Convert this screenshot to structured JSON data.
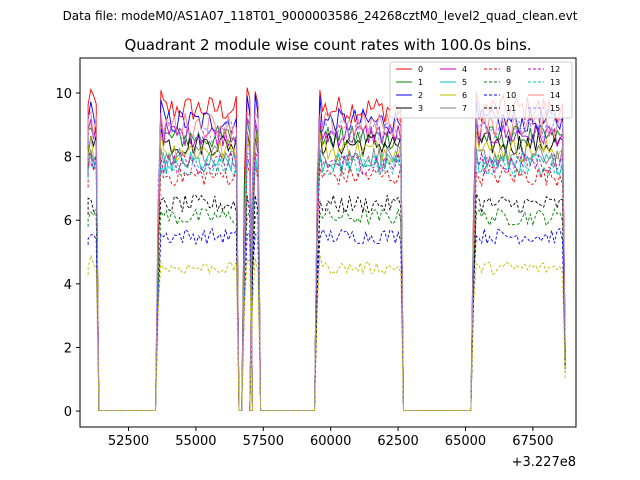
{
  "chart_data": {
    "type": "line",
    "suptitle": "Data file: modeM0/AS1A07_118T01_9000003586_24268cztM0_level2_quad_clean.evt",
    "title": "Quadrant 2 module wise count rates with 100.0s bins.",
    "xlabel": "",
    "ylabel": "",
    "x_offset_label": "+3.227e8",
    "xlim": [
      50700,
      69100
    ],
    "ylim": [
      -0.5,
      11.1
    ],
    "x_ticks": [
      52500,
      55000,
      57500,
      60000,
      62500,
      65000,
      67500
    ],
    "x_tick_labels": [
      "52500",
      "55000",
      "57500",
      "60000",
      "62500",
      "65000",
      "67500"
    ],
    "y_ticks": [
      0,
      2,
      4,
      6,
      8,
      10
    ],
    "y_tick_labels": [
      "0",
      "2",
      "4",
      "6",
      "8",
      "10"
    ],
    "bin_seconds": 100,
    "segments": [
      {
        "start": 51000,
        "end": 51300
      },
      {
        "start": 53600,
        "end": 56500
      },
      {
        "start": 56800,
        "end": 57000
      },
      {
        "start": 57100,
        "end": 57300
      },
      {
        "start": 59500,
        "end": 62600
      },
      {
        "start": 65300,
        "end": 68600
      }
    ],
    "gap_level": 0.02,
    "series": [
      {
        "name": "0",
        "color": "#ff0000",
        "dashed": false,
        "level": 9.5,
        "edge_spike": 10.3
      },
      {
        "name": "1",
        "color": "#008000",
        "dashed": false,
        "level": 8.6,
        "edge_spike": 9.2
      },
      {
        "name": "2",
        "color": "#0000ff",
        "dashed": false,
        "level": 9.1,
        "edge_spike": 10.0
      },
      {
        "name": "3",
        "color": "#000000",
        "dashed": false,
        "level": 8.4,
        "edge_spike": 8.9
      },
      {
        "name": "4",
        "color": "#c000c0",
        "dashed": false,
        "level": 8.7,
        "edge_spike": 9.4
      },
      {
        "name": "5",
        "color": "#00bfbf",
        "dashed": false,
        "level": 7.8,
        "edge_spike": 8.3
      },
      {
        "name": "6",
        "color": "#bfbf00",
        "dashed": false,
        "level": 8.2,
        "edge_spike": 8.8
      },
      {
        "name": "7",
        "color": "#808080",
        "dashed": false,
        "level": 8.0,
        "edge_spike": 8.5
      },
      {
        "name": "8",
        "color": "#ff0000",
        "dashed": true,
        "level": 7.4,
        "edge_spike": 7.8
      },
      {
        "name": "9",
        "color": "#008000",
        "dashed": true,
        "level": 6.1,
        "edge_spike": 6.3
      },
      {
        "name": "10",
        "color": "#0000ff",
        "dashed": true,
        "level": 5.5,
        "edge_spike": 5.7
      },
      {
        "name": "11",
        "color": "#000000",
        "dashed": true,
        "level": 6.5,
        "edge_spike": 6.9
      },
      {
        "name": "12",
        "color": "#c000c0",
        "dashed": true,
        "level": 7.8,
        "edge_spike": 8.2
      },
      {
        "name": "13",
        "color": "#00bfbf",
        "dashed": true,
        "level": 7.7,
        "edge_spike": 8.0
      },
      {
        "name": "14",
        "color": "#ff8080",
        "dashed": false,
        "level": 9.0,
        "edge_spike": 9.6
      },
      {
        "name": "15",
        "color": "#8080ff",
        "dashed": true,
        "level": 8.8,
        "edge_spike": 9.3
      }
    ],
    "series_dashed_note": "",
    "extra_yellow_dashed": {
      "name": "",
      "color": "#bfbf00",
      "level": 4.5
    },
    "legend_position": "top-right",
    "legend_columns": 4
  }
}
